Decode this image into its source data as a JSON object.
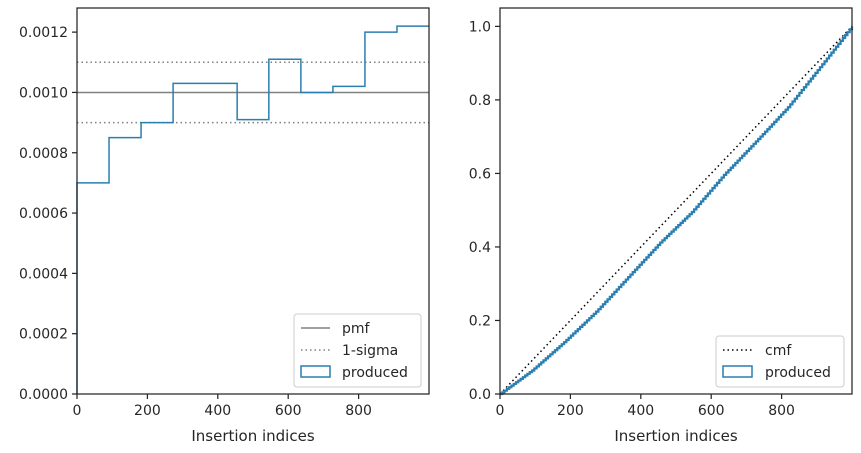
{
  "colors": {
    "produced": "#2a7fb0",
    "pmf": "#808080",
    "sigma": "#808080",
    "cmf": "#000000",
    "axis": "#262626",
    "legend_border": "#cccccc"
  },
  "chart_data": [
    {
      "type": "step",
      "title": "",
      "xlabel": "Insertion indices",
      "ylabel": "",
      "xlim": [
        0,
        1000
      ],
      "ylim": [
        0,
        0.00128
      ],
      "xticks": [
        0,
        200,
        400,
        600,
        800
      ],
      "xtick_labels": [
        "0",
        "200",
        "400",
        "600",
        "800"
      ],
      "yticks": [
        0,
        0.0002,
        0.0004,
        0.0006,
        0.0008,
        0.001,
        0.0012
      ],
      "ytick_labels": [
        "0.0000",
        "0.0002",
        "0.0004",
        "0.0006",
        "0.0008",
        "0.0010",
        "0.0012"
      ],
      "grid": false,
      "legend_position": "lower-right",
      "legend": [
        "pmf",
        "1-sigma",
        "produced"
      ],
      "hlines": [
        {
          "name": "pmf",
          "y": 0.001,
          "style": "solid"
        },
        {
          "name": "1-sigma",
          "y": 0.0011,
          "style": "dotted"
        },
        {
          "name": "1-sigma",
          "y": 0.0009,
          "style": "dotted"
        }
      ],
      "series": [
        {
          "name": "produced",
          "bin_edges": [
            0,
            91,
            182,
            273,
            364,
            455,
            545,
            636,
            727,
            818,
            909,
            1000
          ],
          "values": [
            0.0007,
            0.00085,
            0.0009,
            0.00103,
            0.00103,
            0.00091,
            0.00111,
            0.001,
            0.00102,
            0.0012,
            0.00122
          ]
        }
      ]
    },
    {
      "type": "line",
      "title": "",
      "xlabel": "Insertion indices",
      "ylabel": "",
      "xlim": [
        0,
        1000
      ],
      "ylim": [
        0,
        1.05
      ],
      "xticks": [
        0,
        200,
        400,
        600,
        800
      ],
      "xtick_labels": [
        "0",
        "200",
        "400",
        "600",
        "800"
      ],
      "yticks": [
        0,
        0.2,
        0.4,
        0.6,
        0.8,
        1.0
      ],
      "ytick_labels": [
        "0.0",
        "0.2",
        "0.4",
        "0.6",
        "0.8",
        "1.0"
      ],
      "grid": false,
      "legend_position": "lower-right",
      "legend": [
        "cmf",
        "produced"
      ],
      "series": [
        {
          "name": "cmf",
          "style": "dotted",
          "x": [
            0,
            1000
          ],
          "y": [
            0,
            1
          ]
        },
        {
          "name": "produced",
          "style": "step",
          "x": [
            0,
            91,
            182,
            273,
            364,
            455,
            545,
            636,
            727,
            818,
            909,
            1000
          ],
          "y": [
            0,
            0.064,
            0.141,
            0.224,
            0.318,
            0.412,
            0.495,
            0.596,
            0.687,
            0.78,
            0.889,
            1.0
          ]
        }
      ]
    }
  ]
}
